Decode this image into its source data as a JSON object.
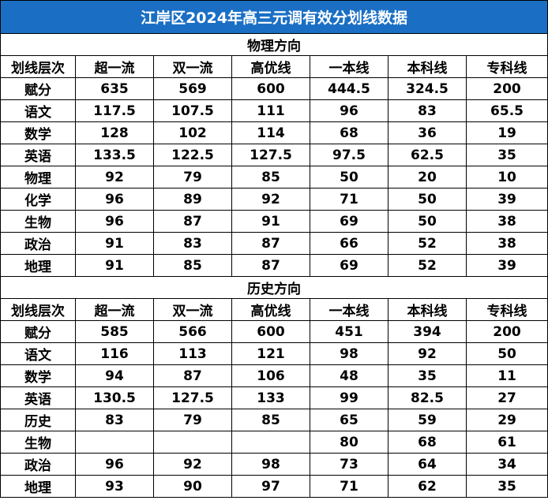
{
  "title": "江岸区2024年高三元调有效分划线数据",
  "header": [
    "划线层次",
    "超一流",
    "双一流",
    "高优线",
    "一本线",
    "本科线",
    "专科线"
  ],
  "sections": [
    {
      "name": "物理方向",
      "rows": [
        [
          "赋分",
          "635",
          "569",
          "600",
          "444.5",
          "324.5",
          "200"
        ],
        [
          "语文",
          "117.5",
          "107.5",
          "111",
          "96",
          "83",
          "65.5"
        ],
        [
          "数学",
          "128",
          "102",
          "114",
          "68",
          "36",
          "19"
        ],
        [
          "英语",
          "133.5",
          "122.5",
          "127.5",
          "97.5",
          "62.5",
          "35"
        ],
        [
          "物理",
          "92",
          "79",
          "85",
          "50",
          "20",
          "10"
        ],
        [
          "化学",
          "96",
          "89",
          "92",
          "71",
          "50",
          "39"
        ],
        [
          "生物",
          "96",
          "87",
          "91",
          "69",
          "50",
          "38"
        ],
        [
          "政治",
          "91",
          "83",
          "87",
          "66",
          "52",
          "38"
        ],
        [
          "地理",
          "91",
          "85",
          "87",
          "69",
          "52",
          "39"
        ]
      ]
    },
    {
      "name": "历史方向",
      "rows": [
        [
          "赋分",
          "585",
          "566",
          "600",
          "451",
          "394",
          "200"
        ],
        [
          "语文",
          "116",
          "113",
          "121",
          "98",
          "92",
          "50"
        ],
        [
          "数学",
          "94",
          "87",
          "106",
          "48",
          "35",
          "11"
        ],
        [
          "英语",
          "130.5",
          "127.5",
          "133",
          "99",
          "82.5",
          "27"
        ],
        [
          "历史",
          "83",
          "79",
          "85",
          "65",
          "59",
          "29"
        ],
        [
          "生物",
          "",
          "",
          "",
          "80",
          "68",
          "61"
        ],
        [
          "政治",
          "96",
          "92",
          "98",
          "73",
          "64",
          "34"
        ],
        [
          "地理",
          "93",
          "90",
          "97",
          "71",
          "62",
          "35"
        ]
      ]
    }
  ],
  "colors": {
    "title_bg": "#1a6fc4",
    "title_fg": "#ffffff",
    "border": "#000000"
  }
}
